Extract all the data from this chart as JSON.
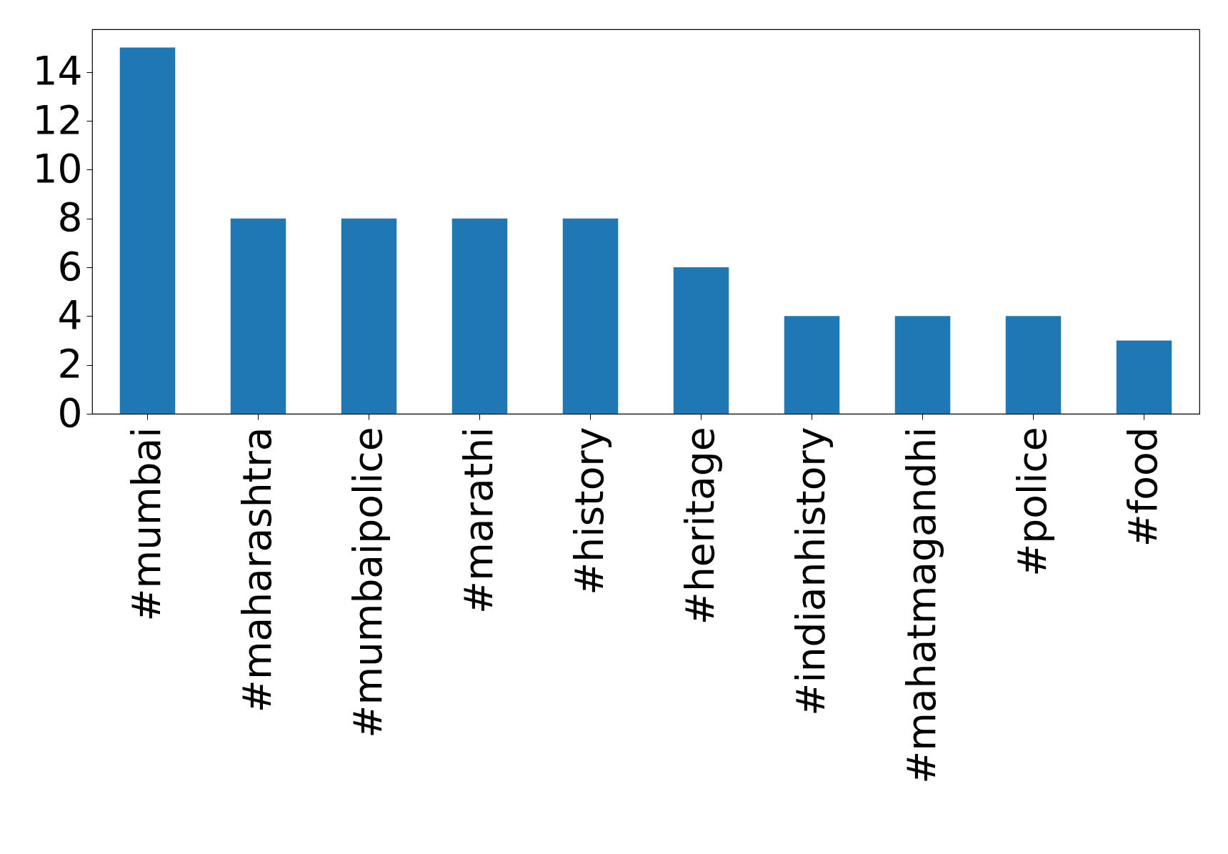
{
  "chart_data": {
    "type": "bar",
    "categories": [
      "#mumbai",
      "#maharashtra",
      "#mumbaipolice",
      "#marathi",
      "#history",
      "#heritage",
      "#indianhistory",
      "#mahatmagandhi",
      "#police",
      "#food"
    ],
    "values": [
      15,
      8,
      8,
      8,
      8,
      6,
      4,
      4,
      4,
      3
    ],
    "color": "#1f77b4",
    "ylim": [
      0,
      15.75
    ],
    "yticks": [
      0,
      2,
      4,
      6,
      8,
      10,
      12,
      14
    ],
    "grid": false
  }
}
